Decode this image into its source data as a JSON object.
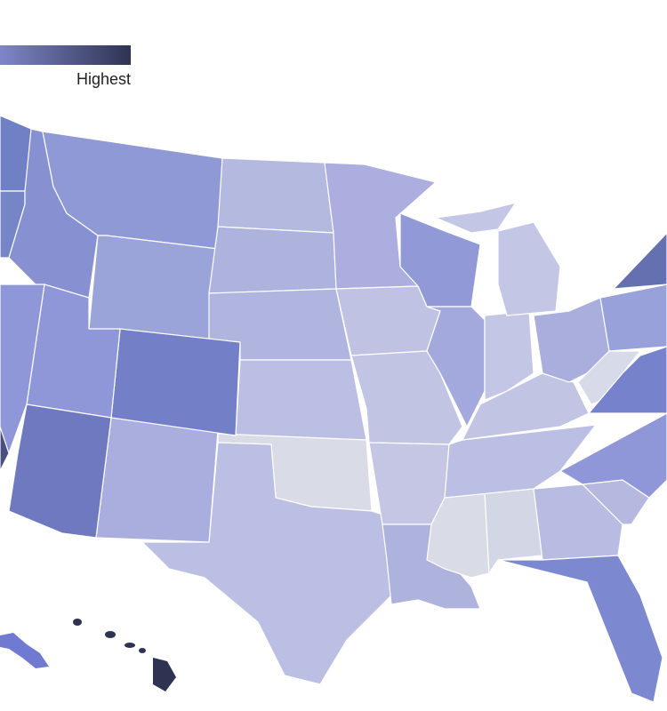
{
  "legend": {
    "label": "Highest"
  }
}
